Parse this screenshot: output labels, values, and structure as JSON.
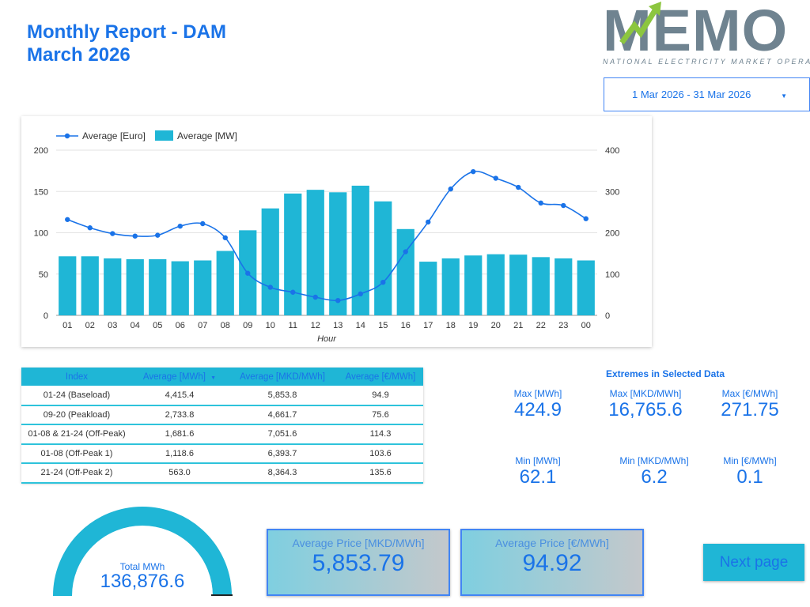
{
  "header": {
    "title_line1": "Monthly Report - DAM",
    "title_line2": "March 2026"
  },
  "logo": {
    "word": "MEMO",
    "subtitle": "NATIONAL ELECTRICITY MARKET OPERATOR"
  },
  "date_range": {
    "value": "1 Mar 2026 - 31 Mar 2026",
    "icon": "caret-down-icon"
  },
  "colors": {
    "accent": "#1a73e8",
    "bar": "#1fb6d6",
    "line": "#1a73e8"
  },
  "chart_data": {
    "type": "bar",
    "xlabel": "Hour",
    "categories": [
      "01",
      "02",
      "03",
      "04",
      "05",
      "06",
      "07",
      "08",
      "09",
      "10",
      "11",
      "12",
      "13",
      "14",
      "15",
      "16",
      "17",
      "18",
      "19",
      "20",
      "21",
      "22",
      "23",
      "00"
    ],
    "series": [
      {
        "name": "Average [Euro]",
        "type": "line",
        "axis": "left",
        "values": [
          116,
          106,
          99,
          96,
          97,
          108,
          111,
          94,
          51,
          34,
          28,
          22,
          18,
          26,
          40,
          77,
          113,
          153,
          174,
          166,
          155,
          136,
          133,
          117
        ]
      },
      {
        "name": "Average [MW]",
        "type": "bar",
        "axis": "right",
        "values": [
          143,
          143,
          138,
          136,
          136,
          131,
          133,
          156,
          206,
          259,
          295,
          304,
          298,
          314,
          276,
          209,
          130,
          138,
          145,
          148,
          147,
          141,
          138,
          133
        ]
      }
    ],
    "y_left": {
      "range": [
        0,
        200
      ],
      "ticks": [
        "0",
        "50",
        "100",
        "150",
        "200"
      ]
    },
    "y_right": {
      "range": [
        0,
        400
      ],
      "ticks": [
        "0",
        "100",
        "200",
        "300",
        "400"
      ]
    },
    "grid": true,
    "legend_position": "top-left"
  },
  "table": {
    "headers": [
      "Index",
      "Average [MWh]",
      "Average [MKD/MWh]",
      "Average [€/MWh]"
    ],
    "sort_icon": "sort-desc-icon",
    "rows": [
      [
        "01-24 (Baseload)",
        "4,415.4",
        "5,853.8",
        "94.9"
      ],
      [
        "09-20 (Peakload)",
        "2,733.8",
        "4,661.7",
        "75.6"
      ],
      [
        "01-08 & 21-24 (Off-Peak)",
        "1,681.6",
        "7,051.6",
        "114.3"
      ],
      [
        "01-08 (Off-Peak 1)",
        "1,118.6",
        "6,393.7",
        "103.6"
      ],
      [
        "21-24 (Off-Peak 2)",
        "563.0",
        "8,364.3",
        "135.6"
      ]
    ]
  },
  "extremes": {
    "title": "Extremes in Selected Data",
    "max_mwh": {
      "label": "Max [MWh]",
      "value": "424.9"
    },
    "max_mkd": {
      "label": "Max [MKD/MWh]",
      "value": "16,765.6"
    },
    "max_eur": {
      "label": "Max [€/MWh]",
      "value": "271.75"
    },
    "min_mwh": {
      "label": "Min [MWh]",
      "value": "62.1"
    },
    "min_mkd": {
      "label": "Min [MKD/MWh]",
      "value": "6.2"
    },
    "min_eur": {
      "label": "Min [€/MWh]",
      "value": "0.1"
    }
  },
  "gauge": {
    "label": "Total MWh",
    "value": "136,876.6",
    "fill_fraction": 1.0
  },
  "avg_price_mkd": {
    "label": "Average Price [MKD/MWh]",
    "value": "5,853.79"
  },
  "avg_price_eur": {
    "label": "Average Price [€/MWh]",
    "value": "94.92"
  },
  "next_button": {
    "label": "Next page"
  }
}
